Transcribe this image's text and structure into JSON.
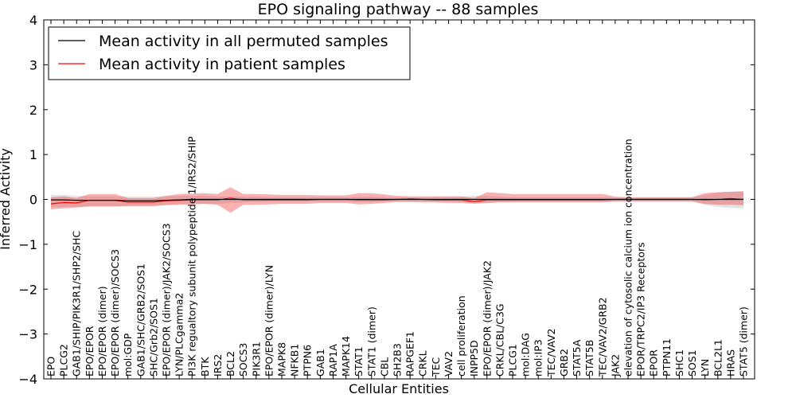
{
  "chart_data": {
    "type": "line",
    "title": "EPO signaling pathway -- 88 samples",
    "xlabel": "Cellular Entities",
    "ylabel": "Inferred Activity",
    "ylim": [
      -4,
      4
    ],
    "yticks": [
      4,
      3,
      2,
      1,
      0,
      -1,
      -2,
      -3,
      -4
    ],
    "ytick_labels": [
      "4",
      "3",
      "2",
      "1",
      "0",
      "−1",
      "−2",
      "−3",
      "−4"
    ],
    "grid": false,
    "legend_position": "top-left",
    "categories": [
      "EPO",
      "PLCG2",
      "GAB1/SHIP/PIK3R1/SHP2/SHC",
      "EPO/EPOR",
      "EPO/EPOR (dimer)",
      "EPO/EPOR (dimer)/SOCS3",
      "mol:GDP",
      "GAB1/SHC/GRB2/SOS1",
      "SHC/Grb2/SOS1",
      "EPO/EPOR (dimer)/JAK2/SOCS3",
      "LYN/PLCgamma2",
      "PI3K regualtory subunit polypeptide 1/IRS2/SHIP",
      "BTK",
      "IRS2",
      "BCL2",
      "SOCS3",
      "PIK3R1",
      "EPO/EPOR (dimer)/LYN",
      "MAPK8",
      "NFKB1",
      "PTPN6",
      "GAB1",
      "RAP1A",
      "MAPK14",
      "STAT1",
      "STAT1 (dimer)",
      "CBL",
      "SH2B3",
      "RAPGEF1",
      "CRKL",
      "TEC",
      "VAV2",
      "cell proliferation",
      "INPP5D",
      "EPO/EPOR (dimer)/JAK2",
      "CRKL/CBL/C3G",
      "PLCG1",
      "mol:DAG",
      "mol:IP3",
      "TEC/VAV2",
      "GRB2",
      "STAT5A",
      "STAT5B",
      "TEC/VAV2/GRB2",
      "JAK2",
      "elevation of cytosolic calcium ion concentration",
      "EPOR/TRPC2/IP3 Receptors",
      "EPOR",
      "PTPN11",
      "SHC1",
      "SOS1",
      "LYN",
      "BCL2L1",
      "HRAS",
      "STAT5 (dimer)"
    ],
    "series": [
      {
        "name": "Mean activity in all permuted samples",
        "color": "#000000",
        "values": [
          -0.01,
          -0.01,
          -0.02,
          -0.02,
          -0.02,
          -0.02,
          -0.03,
          -0.03,
          -0.03,
          -0.02,
          -0.01,
          0,
          0,
          0,
          0,
          0,
          0,
          0,
          0,
          0,
          0,
          0,
          0,
          0,
          0,
          0,
          0,
          0,
          0,
          0,
          0,
          0,
          0,
          0,
          0,
          0,
          0,
          0,
          0,
          0,
          0,
          0,
          0,
          0,
          0,
          0,
          0,
          0,
          0,
          0,
          0,
          0,
          0,
          0,
          0
        ],
        "band_lower": [
          -0.17,
          -0.17,
          -0.17,
          -0.17,
          -0.17,
          -0.17,
          -0.14,
          -0.14,
          -0.14,
          -0.12,
          -0.1,
          -0.1,
          -0.1,
          -0.1,
          -0.08,
          -0.07,
          -0.06,
          -0.05,
          -0.05,
          -0.05,
          -0.05,
          -0.05,
          -0.05,
          -0.05,
          -0.06,
          -0.06,
          -0.05,
          -0.04,
          -0.04,
          -0.04,
          -0.05,
          -0.05,
          -0.06,
          -0.08,
          -0.08,
          -0.06,
          -0.05,
          -0.05,
          -0.05,
          -0.05,
          -0.05,
          -0.05,
          -0.05,
          -0.05,
          -0.04,
          -0.04,
          -0.04,
          -0.04,
          -0.04,
          -0.04,
          -0.05,
          -0.12,
          -0.17,
          -0.19,
          -0.2
        ],
        "band_upper": [
          0.1,
          0.1,
          0.08,
          0.07,
          0.07,
          0.07,
          0.06,
          0.06,
          0.06,
          0.07,
          0.08,
          0.08,
          0.08,
          0.07,
          0.07,
          0.06,
          0.06,
          0.05,
          0.05,
          0.05,
          0.05,
          0.05,
          0.05,
          0.05,
          0.06,
          0.06,
          0.05,
          0.04,
          0.04,
          0.04,
          0.05,
          0.05,
          0.06,
          0.08,
          0.08,
          0.06,
          0.05,
          0.05,
          0.05,
          0.05,
          0.05,
          0.05,
          0.05,
          0.05,
          0.04,
          0.04,
          0.04,
          0.04,
          0.04,
          0.04,
          0.05,
          0.1,
          0.15,
          0.17,
          0.18
        ]
      },
      {
        "name": "Mean activity in patient samples",
        "color": "#ff0000",
        "values": [
          -0.1,
          -0.07,
          -0.08,
          -0.02,
          -0.02,
          -0.02,
          -0.06,
          -0.06,
          -0.06,
          -0.03,
          -0.02,
          -0.01,
          -0.01,
          -0.01,
          0.03,
          -0.01,
          -0.01,
          -0.01,
          -0.01,
          -0.01,
          -0.01,
          0,
          0,
          0,
          -0.01,
          -0.01,
          -0.01,
          0,
          0.01,
          0,
          -0.01,
          -0.01,
          -0.01,
          -0.05,
          -0.01,
          -0.01,
          -0.01,
          -0.01,
          -0.01,
          -0.01,
          -0.01,
          -0.01,
          -0.01,
          -0.01,
          0,
          0,
          0,
          0,
          0,
          0,
          0,
          -0.01,
          0,
          0.02,
          0
        ],
        "band_lower": [
          -0.22,
          -0.2,
          -0.18,
          -0.15,
          -0.15,
          -0.15,
          -0.15,
          -0.15,
          -0.15,
          -0.13,
          -0.12,
          -0.11,
          -0.1,
          -0.12,
          -0.3,
          -0.12,
          -0.12,
          -0.11,
          -0.1,
          -0.1,
          -0.1,
          -0.08,
          -0.08,
          -0.08,
          -0.11,
          -0.1,
          -0.08,
          -0.06,
          -0.06,
          -0.07,
          -0.07,
          -0.08,
          -0.08,
          -0.1,
          -0.08,
          -0.07,
          -0.07,
          -0.07,
          -0.07,
          -0.07,
          -0.07,
          -0.07,
          -0.07,
          -0.07,
          -0.05,
          -0.05,
          -0.05,
          -0.05,
          -0.05,
          -0.05,
          -0.05,
          -0.1,
          -0.12,
          -0.12,
          -0.13
        ],
        "band_upper": [
          0.05,
          0.07,
          0.03,
          0.12,
          0.12,
          0.12,
          0.03,
          0.03,
          0.03,
          0.08,
          0.12,
          0.13,
          0.14,
          0.12,
          0.27,
          0.12,
          0.12,
          0.11,
          0.1,
          0.1,
          0.1,
          0.09,
          0.09,
          0.09,
          0.14,
          0.14,
          0.11,
          0.08,
          0.07,
          0.07,
          0.07,
          0.07,
          0.07,
          0.03,
          0.16,
          0.14,
          0.12,
          0.12,
          0.12,
          0.12,
          0.12,
          0.12,
          0.12,
          0.12,
          0.06,
          0.05,
          0.05,
          0.05,
          0.05,
          0.05,
          0.05,
          0.14,
          0.16,
          0.17,
          0.18
        ]
      }
    ]
  }
}
